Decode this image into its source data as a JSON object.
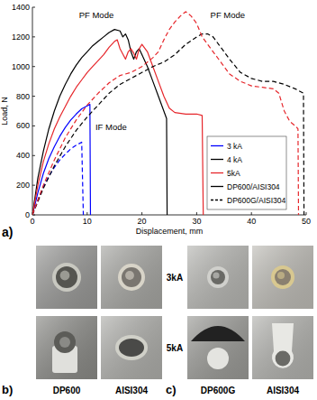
{
  "chart_data": {
    "type": "line",
    "xlabel": "Displacement, mm",
    "ylabel": "Load, N",
    "xlim": [
      0,
      50
    ],
    "xticks": [
      0,
      10,
      20,
      30,
      40,
      50
    ],
    "ylim": [
      0,
      1400
    ],
    "yticks": [
      0,
      200,
      400,
      600,
      800,
      1000,
      1200,
      1400
    ],
    "legend": "lower right",
    "legend_items": [
      {
        "label": "3 kA",
        "color": "#0000ff",
        "line_style": "solid"
      },
      {
        "label": "4 kA",
        "color": "#000000",
        "line_style": "solid"
      },
      {
        "label": "5kA",
        "color": "#e6262b",
        "line_style": "solid"
      },
      {
        "label": "DP600/AISI304",
        "color": "#000000",
        "line_style": "solid"
      },
      {
        "label": "DP600G/AISI304",
        "color": "#000000",
        "line_style": "dashed"
      }
    ],
    "series": [
      {
        "color": "#0000ff",
        "line_style": "solid",
        "x": [
          0,
          1,
          2,
          3,
          4,
          5,
          6,
          7,
          8,
          9,
          10,
          10.5,
          10.6
        ],
        "values": [
          0,
          150,
          280,
          380,
          460,
          530,
          590,
          640,
          680,
          715,
          735,
          745,
          0
        ]
      },
      {
        "color": "#0000ff",
        "line_style": "dashed",
        "x": [
          0,
          1,
          2,
          3,
          4,
          5,
          6,
          7,
          8,
          9,
          9.3
        ],
        "values": [
          0,
          100,
          190,
          260,
          320,
          370,
          410,
          445,
          470,
          490,
          0
        ]
      },
      {
        "color": "#000000",
        "line_style": "solid",
        "x": [
          0,
          1,
          2,
          3,
          4,
          5,
          6,
          7,
          8,
          9,
          10,
          11,
          12,
          13,
          14,
          15,
          16,
          16.5,
          17,
          17.5,
          18,
          18.5,
          19,
          19.5,
          20,
          21,
          22,
          23,
          24,
          24.5,
          24.6
        ],
        "values": [
          0,
          250,
          430,
          580,
          700,
          800,
          880,
          950,
          1010,
          1060,
          1100,
          1140,
          1170,
          1200,
          1230,
          1250,
          1240,
          1200,
          1220,
          1180,
          1100,
          1050,
          1100,
          1120,
          1080,
          1000,
          900,
          800,
          700,
          650,
          0
        ]
      },
      {
        "color": "#e6262b",
        "line_style": "solid",
        "x": [
          0,
          1,
          2,
          3,
          4,
          5,
          6,
          7,
          8,
          9,
          10,
          11,
          12,
          13,
          14,
          15,
          15.5,
          16,
          17,
          17.5,
          18,
          18.5,
          19,
          19.5,
          20,
          21,
          22,
          23,
          24,
          25,
          26,
          28,
          30,
          31,
          31.2
        ],
        "values": [
          0,
          200,
          360,
          480,
          580,
          660,
          730,
          800,
          860,
          910,
          960,
          1000,
          1040,
          1080,
          1130,
          1170,
          1180,
          1120,
          1050,
          1100,
          1120,
          1090,
          1050,
          1120,
          1150,
          1100,
          1000,
          900,
          800,
          720,
          690,
          680,
          680,
          670,
          0
        ]
      },
      {
        "color": "#000000",
        "line_style": "dashed",
        "x": [
          0,
          2,
          4,
          6,
          8,
          10,
          12,
          14,
          16,
          18,
          20,
          22,
          24,
          26,
          28,
          30,
          31,
          32,
          33,
          34,
          36,
          38,
          40,
          42,
          44,
          46,
          48,
          49.5,
          49.6
        ],
        "values": [
          0,
          180,
          330,
          460,
          570,
          660,
          740,
          820,
          880,
          920,
          960,
          1000,
          1030,
          1080,
          1150,
          1200,
          1220,
          1220,
          1200,
          1150,
          1050,
          960,
          920,
          900,
          900,
          880,
          850,
          820,
          0
        ]
      },
      {
        "color": "#e6262b",
        "line_style": "dashed",
        "x": [
          0,
          2,
          4,
          6,
          8,
          10,
          12,
          14,
          16,
          18,
          20,
          22,
          23,
          24,
          25,
          26,
          27,
          28,
          29,
          30,
          31,
          32,
          33,
          34,
          36,
          38,
          40,
          42,
          44,
          45,
          46,
          47,
          48,
          48.5,
          48.6
        ],
        "values": [
          0,
          200,
          370,
          520,
          640,
          740,
          820,
          890,
          940,
          960,
          1000,
          1060,
          1100,
          1180,
          1250,
          1300,
          1340,
          1370,
          1340,
          1290,
          1200,
          1150,
          1100,
          1050,
          950,
          900,
          870,
          860,
          850,
          820,
          700,
          630,
          600,
          580,
          0
        ]
      }
    ],
    "annotations": [
      {
        "text": "PF Mode",
        "x": 8.5,
        "y": 1330
      },
      {
        "text": "PF Mode",
        "x": 32.5,
        "y": 1330
      },
      {
        "text": "IF Mode",
        "x": 11.5,
        "y": 570
      }
    ],
    "panel_label": "a)"
  },
  "figure": {
    "row_labels": [
      "3kA",
      "5kA"
    ],
    "panels": [
      {
        "label": "b)",
        "columns": [
          "DP600",
          "AISI304"
        ]
      },
      {
        "label": "c)",
        "columns": [
          "DP600G",
          "AISI304"
        ]
      }
    ]
  }
}
